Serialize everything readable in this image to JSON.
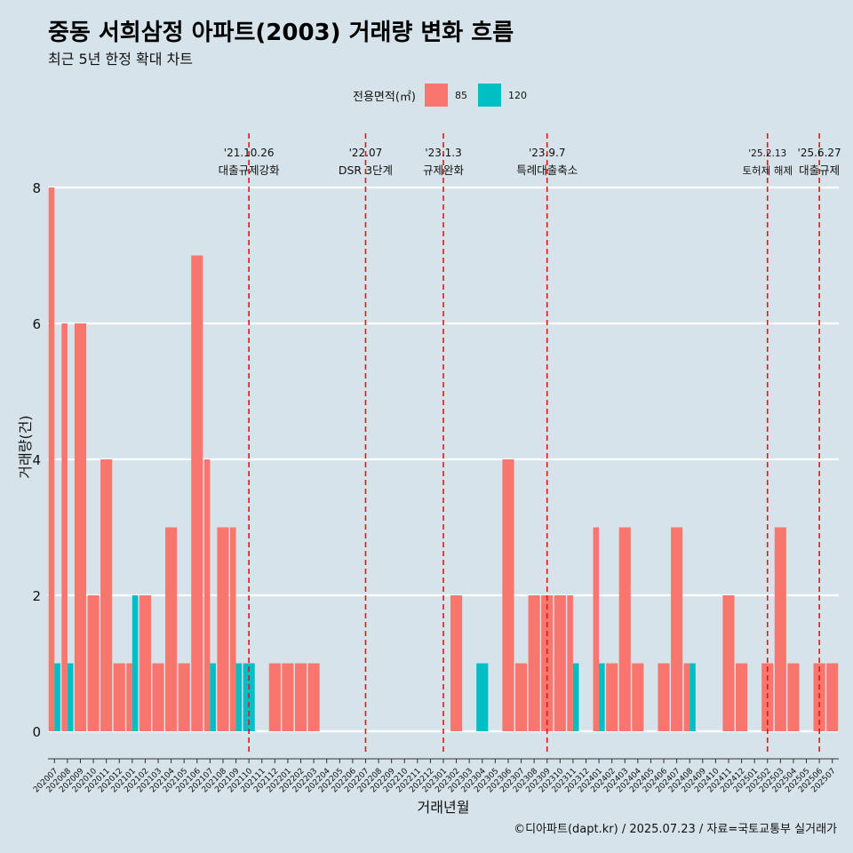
{
  "header": {
    "title": "중동 서희삼정 아파트(2003) 거래량 변화 흐름",
    "subtitle": "최근 5년 한정 확대 차트"
  },
  "legend": {
    "title": "전용면적(㎡)",
    "items": [
      {
        "label": "85",
        "color": "#f8766d"
      },
      {
        "label": "120",
        "color": "#00bfc4"
      }
    ]
  },
  "caption": "©디아파트(dapt.kr) / 2025.07.23 / 자료=국토교통부 실거래가",
  "chart_data": {
    "type": "bar",
    "xlabel": "거래년월",
    "ylabel": "거래량(건)",
    "ylim": [
      0,
      8
    ],
    "yticks": [
      0,
      2,
      4,
      6,
      8
    ],
    "categories": [
      "202007",
      "202008",
      "202009",
      "202010",
      "202011",
      "202012",
      "202101",
      "202102",
      "202103",
      "202104",
      "202105",
      "202106",
      "202107",
      "202108",
      "202109",
      "202110",
      "202111",
      "202112",
      "202201",
      "202202",
      "202203",
      "202204",
      "202205",
      "202206",
      "202207",
      "202208",
      "202209",
      "202210",
      "202211",
      "202212",
      "202301",
      "202302",
      "202303",
      "202304",
      "202305",
      "202306",
      "202307",
      "202308",
      "202309",
      "202310",
      "202311",
      "202312",
      "202401",
      "202402",
      "202403",
      "202404",
      "202405",
      "202406",
      "202407",
      "202408",
      "202409",
      "202410",
      "202411",
      "202412",
      "202501",
      "202502",
      "202503",
      "202504",
      "202505",
      "202506",
      "202507"
    ],
    "series": [
      {
        "name": "85",
        "color": "#f8766d",
        "values": [
          8,
          6,
          6,
          2,
          4,
          1,
          1,
          2,
          1,
          3,
          1,
          7,
          4,
          3,
          3,
          0,
          0,
          1,
          1,
          1,
          1,
          0,
          0,
          0,
          0,
          0,
          0,
          0,
          0,
          0,
          0,
          2,
          0,
          0,
          0,
          4,
          1,
          2,
          2,
          2,
          2,
          0,
          3,
          1,
          3,
          1,
          0,
          1,
          3,
          1,
          0,
          0,
          2,
          1,
          0,
          1,
          3,
          1,
          0,
          1,
          1
        ]
      },
      {
        "name": "120",
        "color": "#00bfc4",
        "values": [
          1,
          1,
          0,
          0,
          0,
          0,
          2,
          0,
          0,
          0,
          0,
          0,
          1,
          0,
          1,
          1,
          0,
          0,
          0,
          0,
          0,
          0,
          0,
          0,
          0,
          0,
          0,
          0,
          0,
          0,
          0,
          0,
          0,
          1,
          0,
          0,
          0,
          0,
          0,
          0,
          1,
          0,
          1,
          0,
          0,
          0,
          0,
          0,
          0,
          1,
          0,
          0,
          0,
          0,
          0,
          0,
          0,
          0,
          0,
          0,
          0
        ]
      }
    ],
    "annotations": [
      {
        "date": "'21.10.26",
        "label": "대출규제강화",
        "x": "202110"
      },
      {
        "date": "'22.07",
        "label": "DSR 3단계",
        "x": "202207"
      },
      {
        "date": "'23.1.3",
        "label": "규제완화",
        "x": "202301"
      },
      {
        "date": "'23.9.7",
        "label": "특례대출축소",
        "x": "202309"
      },
      {
        "date": "'25.2.13",
        "label": "토허제 해제",
        "x": "202502"
      },
      {
        "date": "'25.6.27",
        "label": "대출규제",
        "x": "202506"
      }
    ],
    "grid": true,
    "legend_position": "top"
  }
}
